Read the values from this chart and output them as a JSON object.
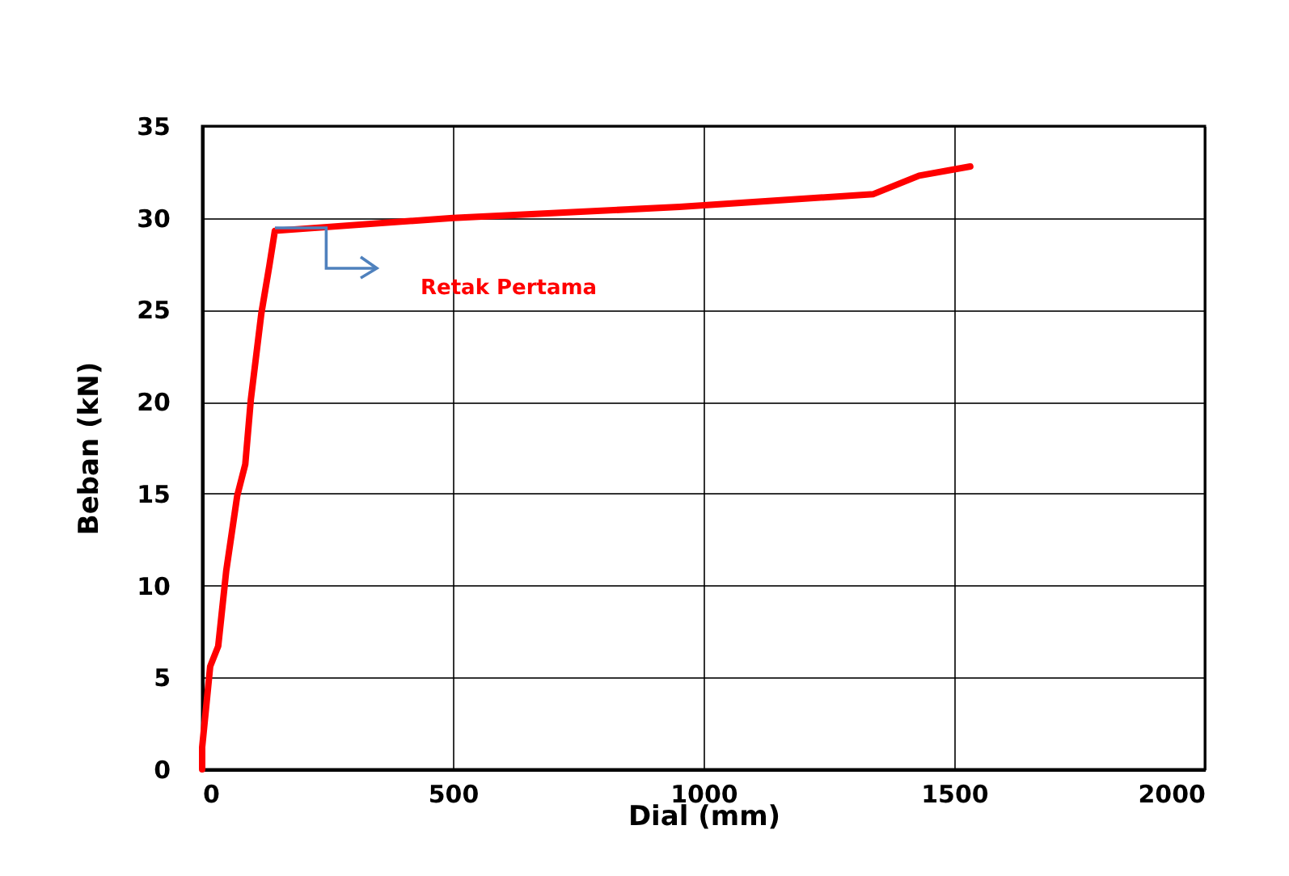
{
  "chart_data": {
    "type": "line",
    "xlabel": "Dial (mm)",
    "ylabel": "Beban (kN)",
    "annotations": [
      "Retak Pertama"
    ],
    "x": [
      0,
      0,
      16,
      32,
      48,
      70,
      86,
      97,
      118,
      134,
      145,
      500,
      952,
      1339,
      1430,
      1532
    ],
    "series": [
      {
        "color": "#ff0000",
        "values": [
          0,
          1.2,
          5.6,
          6.7,
          10.8,
          14.9,
          16.6,
          20.1,
          24.8,
          27.4,
          29.3,
          30.0,
          30.6,
          31.3,
          32.3,
          32.8
        ]
      }
    ],
    "xlim": [
      0,
      2000
    ],
    "xticks": [
      0,
      500,
      1000,
      1500,
      2000
    ],
    "ylim": [
      0,
      35
    ],
    "yticks": [
      0,
      5,
      10,
      15,
      20,
      25,
      30,
      35
    ],
    "grid": true,
    "marker": "none",
    "line_style": "solid"
  }
}
